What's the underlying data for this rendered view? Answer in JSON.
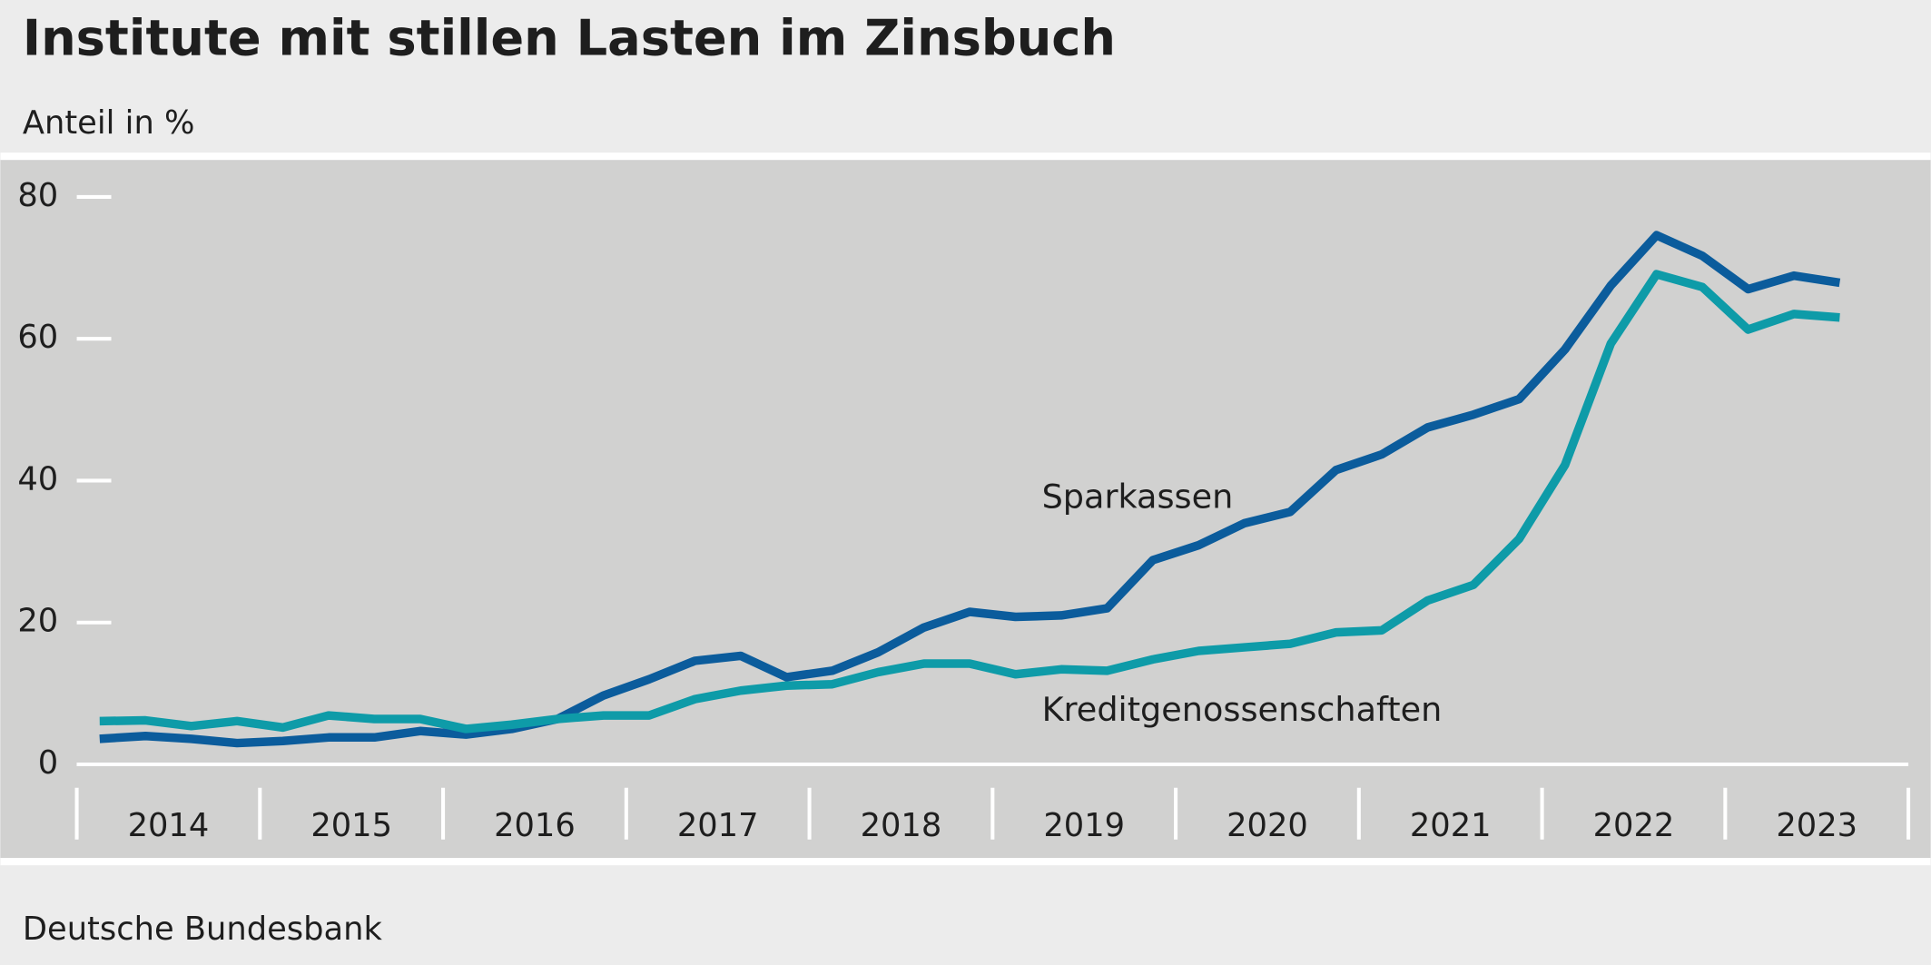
{
  "chart_data": {
    "type": "line",
    "title": "Institute mit stillen Lasten im Zinsbuch",
    "subtitle": "Anteil in %",
    "source": "Deutsche Bundesbank",
    "categories": [
      "2014",
      null,
      null,
      null,
      "2015",
      null,
      null,
      null,
      "2016",
      null,
      null,
      null,
      "2017",
      null,
      null,
      null,
      "2018",
      null,
      null,
      null,
      "2019",
      null,
      null,
      null,
      "2020",
      null,
      null,
      null,
      "2021",
      null,
      null,
      null,
      "2022",
      null,
      null,
      null,
      "2023",
      null,
      null
    ],
    "series": [
      {
        "name": "Sparkassen",
        "color": "#0b5c9c",
        "values": [
          3.6,
          4.0,
          3.6,
          3.0,
          3.3,
          3.8,
          3.8,
          4.7,
          4.2,
          5.0,
          6.4,
          9.7,
          12.0,
          14.6,
          15.3,
          12.3,
          13.2,
          15.8,
          19.3,
          21.5,
          20.8,
          21.0,
          22.0,
          28.8,
          30.9,
          34.0,
          35.6,
          41.5,
          43.7,
          47.5,
          49.3,
          51.5,
          58.5,
          67.5,
          74.6,
          71.7,
          67.0,
          68.9,
          67.9
        ]
      },
      {
        "name": "Kreditgenossenschaften",
        "color": "#0e9ba8",
        "values": [
          6.1,
          6.2,
          5.4,
          6.1,
          5.2,
          6.9,
          6.4,
          6.4,
          5.0,
          5.6,
          6.4,
          6.9,
          6.9,
          9.2,
          10.4,
          11.1,
          11.3,
          13.0,
          14.2,
          14.2,
          12.7,
          13.4,
          13.2,
          14.8,
          16.0,
          16.5,
          17.0,
          18.6,
          18.9,
          23.1,
          25.3,
          31.8,
          42.2,
          59.3,
          69.1,
          67.3,
          61.3,
          63.5,
          63.0
        ]
      }
    ],
    "ylim": [
      0,
      80
    ],
    "yticks": [
      0,
      20,
      40,
      60,
      80
    ]
  }
}
